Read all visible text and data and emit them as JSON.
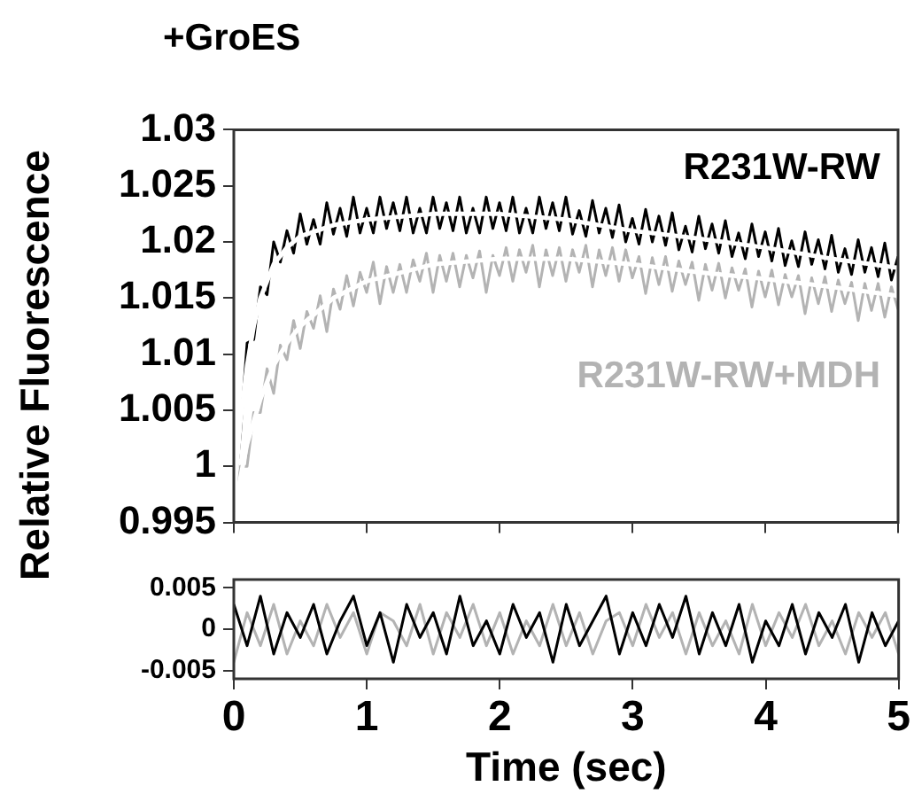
{
  "chart_data": [
    {
      "type": "line",
      "title": "+GroES",
      "ylabel": "Relative Fluorescence",
      "xlim": [
        0,
        5
      ],
      "xticks": [
        0,
        1,
        2,
        3,
        4,
        5
      ],
      "ylim": [
        0.995,
        1.03
      ],
      "yticks": [
        {
          "value": 0.995,
          "label": "0.995"
        },
        1,
        {
          "value": 1.005,
          "label": "1.005"
        },
        {
          "value": 1.01,
          "label": "1.01"
        },
        {
          "value": 1.015,
          "label": "1.015"
        },
        {
          "value": 1.02,
          "label": "1.02"
        },
        {
          "value": 1.025,
          "label": "1.025"
        },
        {
          "value": 1.03,
          "label": "1.03"
        }
      ],
      "tick_labels": "y",
      "grid": false,
      "legend": false,
      "marker": "none",
      "x": [
        0,
        0.05,
        0.1,
        0.15,
        0.2,
        0.25,
        0.3,
        0.35,
        0.4,
        0.45,
        0.5,
        0.55,
        0.6,
        0.65,
        0.7,
        0.75,
        0.8,
        0.85,
        0.9,
        0.95,
        1,
        1.05,
        1.1,
        1.15,
        1.2,
        1.25,
        1.3,
        1.35,
        1.4,
        1.45,
        1.5,
        1.55,
        1.6,
        1.65,
        1.7,
        1.75,
        1.8,
        1.85,
        1.9,
        1.95,
        2,
        2.05,
        2.1,
        2.15,
        2.2,
        2.25,
        2.3,
        2.35,
        2.4,
        2.45,
        2.5,
        2.55,
        2.6,
        2.65,
        2.7,
        2.75,
        2.8,
        2.85,
        2.9,
        2.95,
        3,
        3.05,
        3.1,
        3.15,
        3.2,
        3.25,
        3.3,
        3.35,
        3.4,
        3.45,
        3.5,
        3.55,
        3.6,
        3.65,
        3.7,
        3.75,
        3.8,
        3.85,
        3.9,
        3.95,
        4,
        4.05,
        4.1,
        4.15,
        4.2,
        4.25,
        4.3,
        4.35,
        4.4,
        4.45,
        4.5,
        4.55,
        4.6,
        4.65,
        4.7,
        4.75,
        4.8,
        4.85,
        4.9,
        4.95,
        5
      ],
      "series": [
        {
          "name": "R231W-RW+MDH",
          "color": "#b3b3b3",
          "values": [
            0.996,
            1.0,
            1.0,
            1.0048,
            1.0048,
            1.0087,
            1.0065,
            1.0108,
            1.0095,
            1.013,
            1.0105,
            1.0138,
            1.0123,
            1.0152,
            1.012,
            1.0158,
            1.014,
            1.017,
            1.0143,
            1.0173,
            1.0155,
            1.0182,
            1.0145,
            1.0178,
            1.0155,
            1.018,
            1.0155,
            1.0184,
            1.0165,
            1.019,
            1.0155,
            1.0188,
            1.0165,
            1.019,
            1.016,
            1.0188,
            1.0168,
            1.0192,
            1.0155,
            1.0188,
            1.017,
            1.0195,
            1.0165,
            1.0193,
            1.0173,
            1.0197,
            1.016,
            1.0193,
            1.017,
            1.0195,
            1.0165,
            1.0193,
            1.0173,
            1.0197,
            1.016,
            1.0193,
            1.017,
            1.0195,
            1.0165,
            1.0193,
            1.0168,
            1.0187,
            1.0154,
            1.0186,
            1.0162,
            1.0187,
            1.0156,
            1.0183,
            1.0162,
            1.0182,
            1.0148,
            1.018,
            1.0157,
            1.0181,
            1.015,
            1.0177,
            1.0157,
            1.0176,
            1.0142,
            1.0174,
            1.0151,
            1.0175,
            1.0144,
            1.0171,
            1.0151,
            1.017,
            1.0136,
            1.0168,
            1.0145,
            1.0169,
            1.0138,
            1.0166,
            1.0145,
            1.0164,
            1.013,
            1.0163,
            1.0139,
            1.0163,
            1.0133,
            1.016,
            1.014
          ]
        },
        {
          "name": "R231W-RW",
          "color": "#000000",
          "values": [
            0.997,
            1.003,
            1.011,
            1.0113,
            1.016,
            1.0153,
            1.02,
            1.0182,
            1.021,
            1.019,
            1.0225,
            1.0198,
            1.022,
            1.0198,
            1.0235,
            1.0207,
            1.023,
            1.0205,
            1.024,
            1.0208,
            1.023,
            1.0208,
            1.024,
            1.0212,
            1.0235,
            1.021,
            1.024,
            1.0208,
            1.023,
            1.0208,
            1.024,
            1.0212,
            1.0235,
            1.021,
            1.024,
            1.0208,
            1.023,
            1.0208,
            1.024,
            1.0212,
            1.0235,
            1.021,
            1.024,
            1.0208,
            1.023,
            1.0208,
            1.024,
            1.0212,
            1.0235,
            1.021,
            1.024,
            1.0207,
            1.0228,
            1.0205,
            1.0237,
            1.0208,
            1.023,
            1.0204,
            1.0233,
            1.02,
            1.0221,
            1.0198,
            1.0229,
            1.02,
            1.0223,
            1.0197,
            1.0226,
            1.0193,
            1.0214,
            1.0191,
            1.0223,
            1.0194,
            1.0216,
            1.019,
            1.0219,
            1.0187,
            1.0208,
            1.0185,
            1.0216,
            1.0187,
            1.0209,
            1.0183,
            1.0212,
            1.0179,
            1.0201,
            1.0178,
            1.0209,
            1.018,
            1.0202,
            1.0176,
            1.0206,
            1.0173,
            1.0194,
            1.0171,
            1.0202,
            1.0173,
            1.0195,
            1.0169,
            1.0199,
            1.0166,
            1.0187
          ]
        },
        {
          "color": "#ffffff",
          "x": [
            0,
            0.05,
            0.1,
            0.15,
            0.2,
            0.3,
            0.4,
            0.5,
            0.75,
            1,
            1.5,
            2,
            2.5,
            3,
            3.5,
            4,
            4.5,
            5
          ],
          "values": [
            0.997,
            1.004,
            1.009,
            1.0125,
            1.015,
            1.018,
            1.0195,
            1.0205,
            1.0215,
            1.022,
            1.0225,
            1.0225,
            1.022,
            1.021,
            1.0203,
            1.0195,
            1.0185,
            1.0177
          ]
        },
        {
          "color": "#ffffff",
          "x": [
            0,
            0.05,
            0.1,
            0.2,
            0.3,
            0.4,
            0.5,
            0.75,
            1,
            1.5,
            2,
            2.5,
            3,
            3.5,
            4,
            4.5,
            5
          ],
          "values": [
            0.996,
            0.999,
            1.002,
            1.006,
            1.009,
            1.011,
            1.0125,
            1.015,
            1.0165,
            1.018,
            1.0185,
            1.0185,
            1.018,
            1.0173,
            1.0167,
            1.016,
            1.0152
          ]
        }
      ]
    },
    {
      "type": "line",
      "xlabel": "Time (sec)",
      "xlim": [
        0,
        5
      ],
      "xticks": [
        0,
        1,
        2,
        3,
        4,
        5
      ],
      "ylim": [
        -0.006,
        0.006
      ],
      "yticks": [
        {
          "value": -0.005,
          "label": "-0.005"
        },
        0,
        {
          "value": 0.005,
          "label": "0.005"
        }
      ],
      "grid": false,
      "legend": false,
      "marker": "none",
      "x": [
        0,
        0.1,
        0.2,
        0.3,
        0.4,
        0.5,
        0.6,
        0.7,
        0.8,
        0.9,
        1,
        1.1,
        1.2,
        1.3,
        1.4,
        1.5,
        1.6,
        1.7,
        1.8,
        1.9,
        2,
        2.1,
        2.2,
        2.3,
        2.4,
        2.5,
        2.6,
        2.7,
        2.8,
        2.9,
        3,
        3.1,
        3.2,
        3.3,
        3.4,
        3.5,
        3.6,
        3.7,
        3.8,
        3.9,
        4,
        4.1,
        4.2,
        4.3,
        4.4,
        4.5,
        4.6,
        4.7,
        4.8,
        4.9,
        5
      ],
      "series": [
        {
          "color": "#b3b3b3",
          "values": [
            -0.004,
            0.002,
            -0.002,
            0.003,
            -0.003,
            0.001,
            -0.002,
            0.003,
            -0.001,
            0.002,
            -0.003,
            0.002,
            0.001,
            -0.002,
            0.003,
            -0.003,
            0.002,
            -0.001,
            0.003,
            -0.002,
            0.002,
            -0.003,
            0.001,
            -0.002,
            0.003,
            -0.002,
            0.002,
            -0.003,
            0.001,
            0.002,
            -0.002,
            0.003,
            -0.001,
            0.002,
            -0.003,
            0.002,
            -0.002,
            0.001,
            -0.003,
            0.003,
            -0.002,
            0.002,
            -0.001,
            0.003,
            -0.002,
            0.001,
            -0.003,
            0.002,
            -0.001,
            0.002,
            -0.003
          ]
        },
        {
          "color": "#000000",
          "values": [
            0.003,
            -0.002,
            0.004,
            -0.003,
            0.002,
            -0.001,
            0.003,
            -0.003,
            0.001,
            0.004,
            -0.002,
            0.002,
            -0.004,
            0.003,
            -0.001,
            0.002,
            -0.003,
            0.004,
            -0.002,
            0.001,
            -0.003,
            0.003,
            -0.001,
            0.002,
            -0.004,
            0.003,
            -0.002,
            0.001,
            0.004,
            -0.003,
            0.002,
            -0.002,
            0.003,
            -0.001,
            0.004,
            -0.003,
            0.002,
            -0.002,
            0.003,
            -0.004,
            0.001,
            -0.002,
            0.003,
            -0.003,
            0.002,
            -0.001,
            0.003,
            -0.004,
            0.002,
            -0.002,
            0.001
          ]
        }
      ]
    }
  ]
}
